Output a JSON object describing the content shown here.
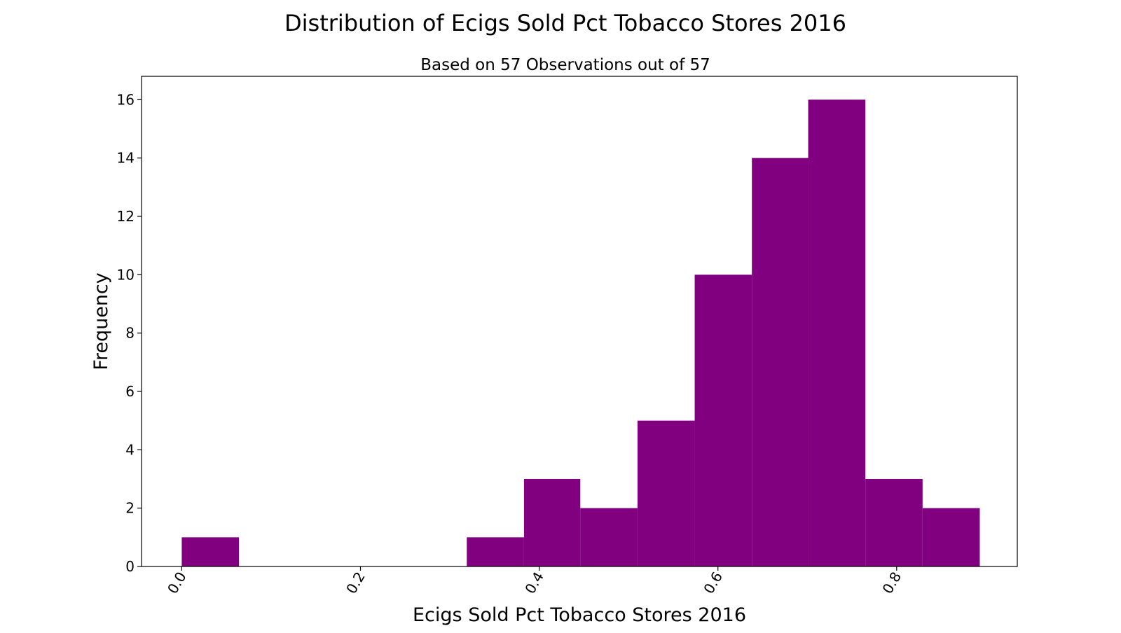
{
  "chart_data": {
    "type": "bar",
    "title": "Distribution of Ecigs Sold Pct Tobacco Stores 2016",
    "subtitle": "Based on 57 Observations out of 57",
    "xlabel": "Ecigs Sold Pct Tobacco Stores 2016",
    "ylabel": "Frequency",
    "bar_color": "#800080",
    "grid": false,
    "xlim": [
      -0.045,
      0.935
    ],
    "ylim": [
      0,
      16.8
    ],
    "x_ticks": [
      0.0,
      0.2,
      0.4,
      0.6,
      0.8
    ],
    "x_tick_labels": [
      "0.0",
      "0.2",
      "0.4",
      "0.6",
      "0.8"
    ],
    "y_ticks": [
      0,
      2,
      4,
      6,
      8,
      10,
      12,
      14,
      16
    ],
    "y_tick_labels": [
      "0",
      "2",
      "4",
      "6",
      "8",
      "10",
      "12",
      "14",
      "16"
    ],
    "bins": [
      {
        "x0": 0.0,
        "x1": 0.064,
        "count": 1
      },
      {
        "x0": 0.064,
        "x1": 0.128,
        "count": 0
      },
      {
        "x0": 0.128,
        "x1": 0.191,
        "count": 0
      },
      {
        "x0": 0.191,
        "x1": 0.255,
        "count": 0
      },
      {
        "x0": 0.255,
        "x1": 0.319,
        "count": 0
      },
      {
        "x0": 0.319,
        "x1": 0.383,
        "count": 1
      },
      {
        "x0": 0.383,
        "x1": 0.446,
        "count": 3
      },
      {
        "x0": 0.446,
        "x1": 0.51,
        "count": 2
      },
      {
        "x0": 0.51,
        "x1": 0.574,
        "count": 5
      },
      {
        "x0": 0.574,
        "x1": 0.638,
        "count": 10
      },
      {
        "x0": 0.638,
        "x1": 0.701,
        "count": 14
      },
      {
        "x0": 0.701,
        "x1": 0.765,
        "count": 16
      },
      {
        "x0": 0.765,
        "x1": 0.829,
        "count": 3
      },
      {
        "x0": 0.829,
        "x1": 0.893,
        "count": 2
      }
    ]
  }
}
